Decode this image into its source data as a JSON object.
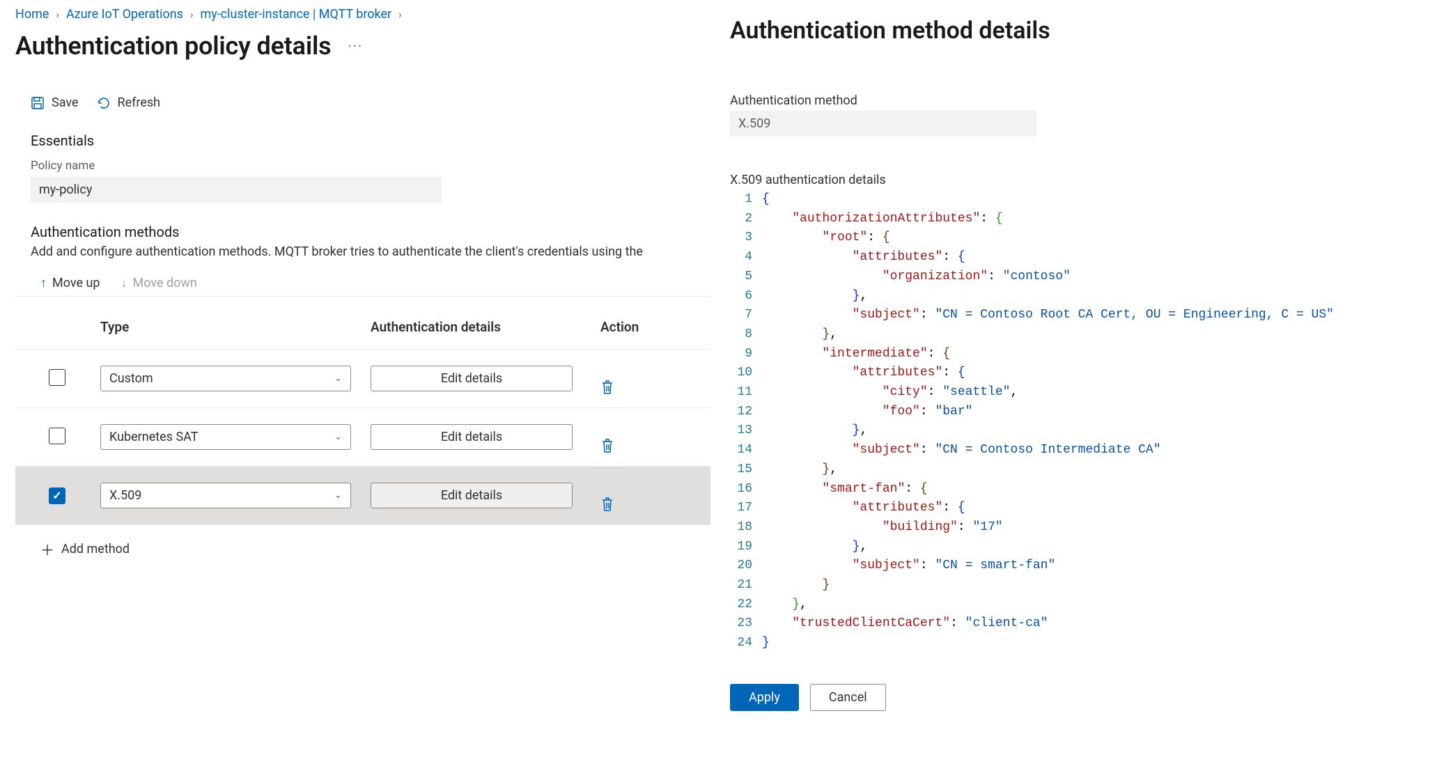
{
  "breadcrumb": {
    "home": "Home",
    "iot": "Azure IoT Operations",
    "cluster": "my-cluster-instance | MQTT broker"
  },
  "page_title": "Authentication policy details",
  "toolbar": {
    "save": "Save",
    "refresh": "Refresh"
  },
  "essentials": {
    "heading": "Essentials",
    "policy_name_label": "Policy name",
    "policy_name_value": "my-policy"
  },
  "methods": {
    "heading": "Authentication methods",
    "description": "Add and configure authentication methods. MQTT broker tries to authenticate the client's credentials using the",
    "move_up": "Move up",
    "move_down": "Move down",
    "col_type": "Type",
    "col_details": "Authentication details",
    "col_action": "Action",
    "edit_label": "Edit details",
    "add_label": "Add method",
    "rows": [
      {
        "type": "Custom",
        "selected": false
      },
      {
        "type": "Kubernetes SAT",
        "selected": false
      },
      {
        "type": "X.509",
        "selected": true
      }
    ]
  },
  "panel": {
    "title": "Authentication method details",
    "method_label": "Authentication method",
    "method_value": "X.509",
    "details_label": "X.509 authentication details",
    "apply": "Apply",
    "cancel": "Cancel",
    "code": {
      "line_count": 24,
      "json": {
        "authorizationAttributes": {
          "root": {
            "attributes": {
              "organization": "contoso"
            },
            "subject": "CN = Contoso Root CA Cert, OU = Engineering, C = US"
          },
          "intermediate": {
            "attributes": {
              "city": "seattle",
              "foo": "bar"
            },
            "subject": "CN = Contoso Intermediate CA"
          },
          "smart-fan": {
            "attributes": {
              "building": "17"
            },
            "subject": "CN = smart-fan"
          }
        },
        "trustedClientCaCert": "client-ca"
      },
      "colors": {
        "brace_l1": "#0431fa",
        "brace_l2": "#319331",
        "brace_l3": "#7b3814",
        "key": "#a31515",
        "string": "#0451a5",
        "punct": "#000000",
        "line_num": "#237893"
      }
    }
  },
  "colors": {
    "accent": "#0067b8",
    "text": "#323130",
    "text_muted": "#605e5c",
    "disabled": "#a19f9d",
    "row_selected": "#e1dfdd",
    "input_bg": "#f3f2f1",
    "border": "#edebe9"
  }
}
